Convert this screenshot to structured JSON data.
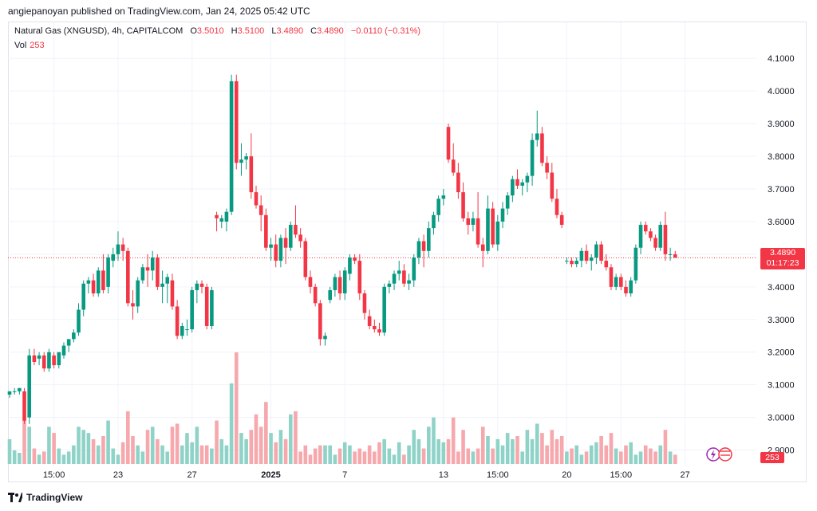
{
  "header": {
    "published": "angiepanoyan published on TradingView.com, Jan 24, 2025 05:42 UTC"
  },
  "legend": {
    "symbol": "Natural Gas (XNGUSD), 4h, CAPITALCOM",
    "open_label": "O",
    "open": "3.5010",
    "high_label": "H",
    "high": "3.5100",
    "low_label": "L",
    "low": "3.4890",
    "close_label": "C",
    "close": "3.4890",
    "change": "−0.0110 (−0.31%)",
    "vol_label": "Vol",
    "vol": "253"
  },
  "price_badge": {
    "price": "3.4890",
    "countdown": "01:17:23"
  },
  "vol_badge": "253",
  "footer": {
    "brand": "TradingView"
  },
  "colors": {
    "up": "#089981",
    "down": "#f23645",
    "up_vol": "#8fd3c8",
    "down_vol": "#f6a8ad",
    "grid": "#f0f3fa"
  },
  "chart_data": {
    "type": "candlestick",
    "ylim": [
      2.855,
      4.125
    ],
    "y_ticks": [
      "4.1000",
      "4.0000",
      "3.9000",
      "3.8000",
      "3.7000",
      "3.6000",
      "3.5000",
      "3.4000",
      "3.3000",
      "3.2000",
      "3.1000",
      "3.0000",
      "2.9000"
    ],
    "x_tick_labels": [
      {
        "label": "15:00",
        "bar": 9
      },
      {
        "label": "23",
        "bar": 22
      },
      {
        "label": "27",
        "bar": 37
      },
      {
        "label": "2025",
        "bar": 53
      },
      {
        "label": "7",
        "bar": 68
      },
      {
        "label": "13",
        "bar": 88
      },
      {
        "label": "15:00",
        "bar": 99
      },
      {
        "label": "20",
        "bar": 113
      },
      {
        "label": "15:00",
        "bar": 124
      },
      {
        "label": "27",
        "bar": 137
      }
    ],
    "last_price": 3.489,
    "candles": [
      [
        3.07,
        3.08,
        3.06,
        3.08,
        40
      ],
      [
        3.08,
        3.09,
        3.07,
        3.08,
        22
      ],
      [
        3.08,
        3.09,
        3.07,
        3.09,
        18
      ],
      [
        3.08,
        3.09,
        2.98,
        2.99,
        70
      ],
      [
        3.0,
        3.21,
        2.98,
        3.19,
        60
      ],
      [
        3.19,
        3.21,
        3.16,
        3.17,
        25
      ],
      [
        3.18,
        3.2,
        3.16,
        3.19,
        15
      ],
      [
        3.19,
        3.2,
        3.14,
        3.15,
        20
      ],
      [
        3.15,
        3.21,
        3.14,
        3.2,
        60
      ],
      [
        3.19,
        3.2,
        3.15,
        3.16,
        50
      ],
      [
        3.16,
        3.2,
        3.15,
        3.2,
        25
      ],
      [
        3.19,
        3.23,
        3.18,
        3.22,
        15
      ],
      [
        3.22,
        3.24,
        3.2,
        3.24,
        20
      ],
      [
        3.24,
        3.27,
        3.23,
        3.26,
        30
      ],
      [
        3.26,
        3.35,
        3.25,
        3.33,
        60
      ],
      [
        3.33,
        3.42,
        3.31,
        3.41,
        55
      ],
      [
        3.41,
        3.43,
        3.38,
        3.42,
        50
      ],
      [
        3.42,
        3.44,
        3.37,
        3.38,
        40
      ],
      [
        3.38,
        3.46,
        3.37,
        3.45,
        30
      ],
      [
        3.45,
        3.5,
        3.38,
        3.39,
        45
      ],
      [
        3.4,
        3.5,
        3.38,
        3.49,
        70
      ],
      [
        3.48,
        3.52,
        3.46,
        3.5,
        25
      ],
      [
        3.5,
        3.57,
        3.48,
        3.53,
        15
      ],
      [
        3.53,
        3.55,
        3.48,
        3.51,
        35
      ],
      [
        3.51,
        3.52,
        3.34,
        3.35,
        85
      ],
      [
        3.35,
        3.39,
        3.3,
        3.34,
        45
      ],
      [
        3.34,
        3.43,
        3.32,
        3.42,
        30
      ],
      [
        3.42,
        3.47,
        3.41,
        3.46,
        20
      ],
      [
        3.46,
        3.5,
        3.4,
        3.45,
        55
      ],
      [
        3.45,
        3.51,
        3.42,
        3.49,
        60
      ],
      [
        3.49,
        3.5,
        3.39,
        3.4,
        40
      ],
      [
        3.4,
        3.45,
        3.35,
        3.41,
        30
      ],
      [
        3.41,
        3.44,
        3.35,
        3.43,
        20
      ],
      [
        3.42,
        3.44,
        3.33,
        3.34,
        60
      ],
      [
        3.34,
        3.36,
        3.24,
        3.25,
        65
      ],
      [
        3.25,
        3.29,
        3.24,
        3.28,
        30
      ],
      [
        3.27,
        3.3,
        3.25,
        3.27,
        50
      ],
      [
        3.27,
        3.4,
        3.26,
        3.39,
        35
      ],
      [
        3.39,
        3.42,
        3.35,
        3.41,
        60
      ],
      [
        3.41,
        3.42,
        3.38,
        3.4,
        30
      ],
      [
        3.4,
        3.41,
        3.27,
        3.28,
        30
      ],
      [
        3.28,
        3.4,
        3.27,
        3.39,
        25
      ],
      [
        3.62,
        3.63,
        3.57,
        3.61,
        70
      ],
      [
        3.6,
        3.62,
        3.58,
        3.61,
        40
      ],
      [
        3.6,
        3.64,
        3.57,
        3.63,
        30
      ],
      [
        3.63,
        4.05,
        3.62,
        4.03,
        130
      ],
      [
        4.03,
        4.05,
        3.76,
        3.78,
        180
      ],
      [
        3.78,
        3.84,
        3.74,
        3.79,
        50
      ],
      [
        3.79,
        3.81,
        3.76,
        3.8,
        40
      ],
      [
        3.8,
        3.87,
        3.67,
        3.69,
        55
      ],
      [
        3.69,
        3.71,
        3.64,
        3.65,
        80
      ],
      [
        3.65,
        3.68,
        3.57,
        3.62,
        60
      ],
      [
        3.62,
        3.64,
        3.51,
        3.52,
        100
      ],
      [
        3.52,
        3.55,
        3.48,
        3.53,
        50
      ],
      [
        3.53,
        3.56,
        3.46,
        3.48,
        35
      ],
      [
        3.48,
        3.56,
        3.46,
        3.55,
        55
      ],
      [
        3.55,
        3.58,
        3.47,
        3.52,
        40
      ],
      [
        3.52,
        3.6,
        3.51,
        3.59,
        80
      ],
      [
        3.59,
        3.65,
        3.55,
        3.56,
        85
      ],
      [
        3.56,
        3.58,
        3.52,
        3.54,
        20
      ],
      [
        3.54,
        3.55,
        3.42,
        3.43,
        30
      ],
      [
        3.43,
        3.45,
        3.38,
        3.4,
        15
      ],
      [
        3.4,
        3.41,
        3.34,
        3.35,
        25
      ],
      [
        3.35,
        3.36,
        3.22,
        3.24,
        30
      ],
      [
        3.24,
        3.26,
        3.22,
        3.25,
        30
      ],
      [
        3.36,
        3.4,
        3.35,
        3.39,
        30
      ],
      [
        3.39,
        3.44,
        3.37,
        3.43,
        15
      ],
      [
        3.43,
        3.45,
        3.36,
        3.38,
        25
      ],
      [
        3.38,
        3.46,
        3.36,
        3.45,
        35
      ],
      [
        3.44,
        3.5,
        3.42,
        3.49,
        30
      ],
      [
        3.49,
        3.5,
        3.47,
        3.48,
        20
      ],
      [
        3.48,
        3.5,
        3.36,
        3.38,
        25
      ],
      [
        3.38,
        3.39,
        3.3,
        3.32,
        20
      ],
      [
        3.31,
        3.33,
        3.27,
        3.28,
        30
      ],
      [
        3.28,
        3.3,
        3.26,
        3.27,
        20
      ],
      [
        3.27,
        3.29,
        3.25,
        3.26,
        35
      ],
      [
        3.26,
        3.41,
        3.25,
        3.4,
        40
      ],
      [
        3.4,
        3.42,
        3.38,
        3.41,
        25
      ],
      [
        3.41,
        3.45,
        3.39,
        3.44,
        15
      ],
      [
        3.44,
        3.48,
        3.42,
        3.45,
        35
      ],
      [
        3.45,
        3.47,
        3.4,
        3.41,
        15
      ],
      [
        3.41,
        3.44,
        3.39,
        3.42,
        30
      ],
      [
        3.42,
        3.5,
        3.4,
        3.49,
        55
      ],
      [
        3.49,
        3.55,
        3.47,
        3.54,
        40
      ],
      [
        3.54,
        3.56,
        3.46,
        3.51,
        25
      ],
      [
        3.51,
        3.6,
        3.49,
        3.58,
        60
      ],
      [
        3.58,
        3.63,
        3.56,
        3.62,
        75
      ],
      [
        3.62,
        3.68,
        3.6,
        3.67,
        40
      ],
      [
        3.67,
        3.7,
        3.65,
        3.68,
        35
      ],
      [
        3.89,
        3.9,
        3.78,
        3.79,
        40
      ],
      [
        3.79,
        3.84,
        3.74,
        3.75,
        75
      ],
      [
        3.75,
        3.78,
        3.67,
        3.69,
        20
      ],
      [
        3.69,
        3.72,
        3.6,
        3.61,
        55
      ],
      [
        3.61,
        3.63,
        3.56,
        3.59,
        25
      ],
      [
        3.59,
        3.63,
        3.57,
        3.61,
        20
      ],
      [
        3.61,
        3.69,
        3.52,
        3.53,
        25
      ],
      [
        3.53,
        3.55,
        3.46,
        3.51,
        60
      ],
      [
        3.51,
        3.68,
        3.5,
        3.64,
        45
      ],
      [
        3.64,
        3.66,
        3.52,
        3.53,
        25
      ],
      [
        3.53,
        3.62,
        3.51,
        3.6,
        40
      ],
      [
        3.6,
        3.66,
        3.58,
        3.64,
        30
      ],
      [
        3.64,
        3.69,
        3.62,
        3.68,
        50
      ],
      [
        3.68,
        3.74,
        3.66,
        3.73,
        40
      ],
      [
        3.73,
        3.76,
        3.7,
        3.71,
        45
      ],
      [
        3.71,
        3.73,
        3.68,
        3.72,
        20
      ],
      [
        3.72,
        3.75,
        3.69,
        3.74,
        55
      ],
      [
        3.74,
        3.87,
        3.71,
        3.85,
        40
      ],
      [
        3.85,
        3.94,
        3.83,
        3.87,
        65
      ],
      [
        3.87,
        3.89,
        3.77,
        3.78,
        50
      ],
      [
        3.78,
        3.8,
        3.73,
        3.75,
        30
      ],
      [
        3.75,
        3.78,
        3.66,
        3.67,
        55
      ],
      [
        3.67,
        3.7,
        3.61,
        3.62,
        40
      ],
      [
        3.62,
        3.63,
        3.58,
        3.59,
        45
      ],
      [
        3.48,
        3.49,
        3.47,
        3.48,
        20
      ],
      [
        3.48,
        3.49,
        3.46,
        3.47,
        25
      ],
      [
        3.47,
        3.49,
        3.46,
        3.48,
        30
      ],
      [
        3.48,
        3.52,
        3.46,
        3.51,
        15
      ],
      [
        3.51,
        3.53,
        3.47,
        3.48,
        20
      ],
      [
        3.48,
        3.5,
        3.45,
        3.49,
        30
      ],
      [
        3.49,
        3.54,
        3.47,
        3.53,
        35
      ],
      [
        3.53,
        3.54,
        3.47,
        3.48,
        45
      ],
      [
        3.48,
        3.5,
        3.45,
        3.46,
        30
      ],
      [
        3.46,
        3.47,
        3.39,
        3.4,
        50
      ],
      [
        3.4,
        3.44,
        3.39,
        3.43,
        25
      ],
      [
        3.43,
        3.44,
        3.39,
        3.4,
        20
      ],
      [
        3.4,
        3.42,
        3.37,
        3.38,
        30
      ],
      [
        3.38,
        3.43,
        3.37,
        3.42,
        35
      ],
      [
        3.42,
        3.53,
        3.41,
        3.52,
        15
      ],
      [
        3.52,
        3.6,
        3.5,
        3.59,
        20
      ],
      [
        3.59,
        3.6,
        3.56,
        3.57,
        30
      ],
      [
        3.57,
        3.58,
        3.54,
        3.55,
        25
      ],
      [
        3.55,
        3.56,
        3.51,
        3.52,
        20
      ],
      [
        3.52,
        3.6,
        3.51,
        3.59,
        30
      ],
      [
        3.59,
        3.63,
        3.48,
        3.5,
        55
      ],
      [
        3.5,
        3.52,
        3.48,
        3.5,
        20
      ],
      [
        3.5,
        3.51,
        3.49,
        3.489,
        15
      ]
    ]
  }
}
